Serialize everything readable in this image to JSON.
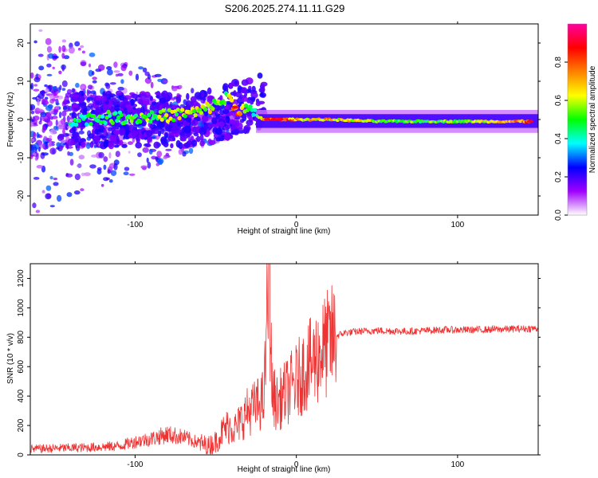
{
  "chart_data": [
    {
      "type": "heatmap",
      "title": "S206.2025.274.11.11.G29",
      "xlabel": "Height of straight line (km)",
      "ylabel": "Frequency (Hz)",
      "xlim": [
        -165,
        150
      ],
      "ylim": [
        -25,
        25
      ],
      "xticks": [
        -100,
        0,
        100
      ],
      "yticks": [
        -20,
        -10,
        0,
        10,
        20
      ],
      "colorbar": {
        "label": "Normalized spectral amplitude",
        "range": [
          0,
          1
        ],
        "ticks": [
          0.0,
          0.2,
          0.4,
          0.6,
          0.8
        ],
        "tick_labels": [
          "0.0",
          "0.2",
          "0.4",
          "0.6",
          "0.8"
        ],
        "stops": [
          "#ffffff",
          "#a000ff",
          "#0000ff",
          "#00ffff",
          "#00ff00",
          "#ffff00",
          "#ff8000",
          "#ff0000",
          "#ff00a0"
        ]
      },
      "ridge": [
        {
          "x": -140,
          "f": 0.0,
          "a": 0.45
        },
        {
          "x": -120,
          "f": 0.5,
          "a": 0.5
        },
        {
          "x": -100,
          "f": 0.5,
          "a": 0.55
        },
        {
          "x": -80,
          "f": 1.0,
          "a": 0.6
        },
        {
          "x": -60,
          "f": 2.0,
          "a": 0.65
        },
        {
          "x": -50,
          "f": 4.0,
          "a": 0.6
        },
        {
          "x": -42,
          "f": 6.0,
          "a": 0.55
        },
        {
          "x": -38,
          "f": 3.0,
          "a": 0.85
        },
        {
          "x": -30,
          "f": 2.5,
          "a": 0.5
        },
        {
          "x": -25,
          "f": 1.0,
          "a": 0.45
        },
        {
          "x": -20,
          "f": 0.0,
          "a": 0.9
        },
        {
          "x": -10,
          "f": 0.0,
          "a": 0.95
        },
        {
          "x": 0,
          "f": 0.0,
          "a": 0.7
        },
        {
          "x": 20,
          "f": 0.0,
          "a": 0.75
        },
        {
          "x": 50,
          "f": -0.5,
          "a": 0.6
        },
        {
          "x": 80,
          "f": -0.5,
          "a": 0.55
        },
        {
          "x": 110,
          "f": -0.5,
          "a": 0.6
        },
        {
          "x": 130,
          "f": -0.5,
          "a": 0.7
        },
        {
          "x": 145,
          "f": -0.5,
          "a": 0.9
        }
      ]
    },
    {
      "type": "line",
      "xlabel": "Height of straight line (km)",
      "ylabel": "SNR (10 * v/v)",
      "xlim": [
        -165,
        150
      ],
      "ylim": [
        0,
        1300
      ],
      "xticks": [
        -100,
        0,
        100
      ],
      "yticks": [
        0,
        200,
        400,
        600,
        800,
        1000,
        1200
      ],
      "color": "#ee3333",
      "series": [
        {
          "name": "SNR",
          "x": [
            -165,
            -150,
            -130,
            -110,
            -100,
            -90,
            -80,
            -70,
            -60,
            -55,
            -50,
            -45,
            -42,
            -38,
            -35,
            -30,
            -25,
            -20,
            -17,
            -15,
            -12,
            -10,
            -5,
            0,
            5,
            10,
            15,
            20,
            25,
            30,
            40,
            50,
            70,
            90,
            110,
            130,
            150
          ],
          "values": [
            40,
            45,
            50,
            60,
            90,
            110,
            140,
            120,
            80,
            60,
            90,
            170,
            200,
            180,
            220,
            300,
            330,
            380,
            1300,
            420,
            350,
            380,
            440,
            500,
            580,
            630,
            700,
            760,
            810,
            830,
            840,
            845,
            840,
            850,
            850,
            855,
            860
          ]
        }
      ]
    }
  ]
}
